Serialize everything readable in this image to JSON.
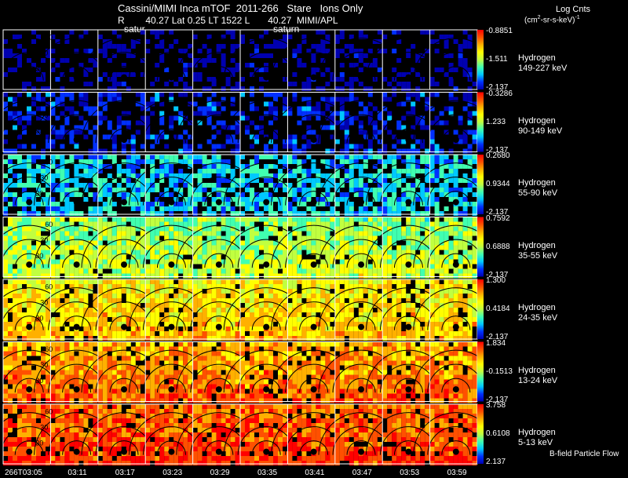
{
  "header": {
    "line1": "Cassini/MIMI Inca mTOF  2011-266   Stare   Ions Only",
    "line2": "R        40.27 Lat 0.25 LT 1522 L       40.27  MIMI/APL",
    "saturn_labels": [
      "satur",
      "saturn"
    ]
  },
  "legend": {
    "title": "Log Cnts",
    "units_main": "(cm",
    "units_exp": "2",
    "units_rest": "-sr-s-keV)",
    "units_exp2": "-1"
  },
  "rows": [
    {
      "species": "Hydrogen",
      "energy": "149-227 keV",
      "max": "-0.8851",
      "mid": "-1.511",
      "min": "-2.137",
      "level": 0.0
    },
    {
      "species": "Hydrogen",
      "energy": "90-149 keV",
      "max": "-0.3286",
      "mid": "1.233",
      "min": "-2.137",
      "level": 0.12
    },
    {
      "species": "Hydrogen",
      "energy": "55-90 keV",
      "max": "0.2680",
      "mid": "0.9344",
      "min": "-2.137",
      "level": 0.3
    },
    {
      "species": "Hydrogen",
      "energy": "35-55 keV",
      "max": "0.7592",
      "mid": "0.6888",
      "min": "-2.137",
      "level": 0.45
    },
    {
      "species": "Hydrogen",
      "energy": "24-35 keV",
      "max": "1.300",
      "mid": "0.4184",
      "min": "-2.137",
      "level": 0.6
    },
    {
      "species": "Hydrogen",
      "energy": "13-24 keV",
      "max": "1.834",
      "mid": "-0.1513",
      "min": "-2.137",
      "level": 0.72
    },
    {
      "species": "Hydrogen",
      "energy": "5-13 keV",
      "max": "3.758",
      "mid": "0.6108",
      "min": "2.137",
      "level": 0.8
    }
  ],
  "contour_labels": [
    "60",
    "30",
    "30"
  ],
  "bfield_label": "B-field Particle Flow",
  "time_labels": [
    "266T03:05",
    "03:11",
    "03:17",
    "03:23",
    "03:29",
    "03:35",
    "03:41",
    "03:47",
    "03:53",
    "03:59"
  ],
  "colors": {
    "background": "#000000",
    "grid": "#ffffff",
    "colorbar": [
      "#0000b0",
      "#0030ff",
      "#00c8ff",
      "#40ffb0",
      "#c0ff40",
      "#ffff00",
      "#ffb000",
      "#ff5000",
      "#ff0000"
    ]
  }
}
